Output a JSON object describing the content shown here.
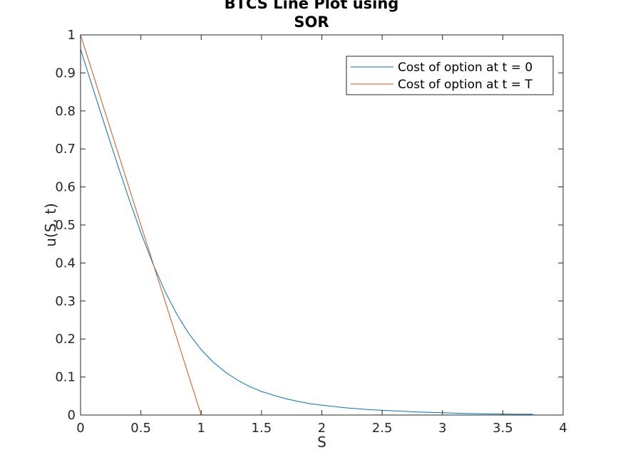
{
  "chart_data": {
    "type": "line",
    "title_lines": [
      "BTCS Line Plot using",
      "SOR"
    ],
    "xlabel": "S",
    "ylabel": "u(S, t)",
    "xlim": [
      0,
      4
    ],
    "ylim": [
      0,
      1
    ],
    "xticks": [
      0,
      0.5,
      1,
      1.5,
      2,
      2.5,
      3,
      3.5,
      4
    ],
    "yticks": [
      0,
      0.1,
      0.2,
      0.3,
      0.4,
      0.5,
      0.6,
      0.7,
      0.8,
      0.9,
      1
    ],
    "xtick_labels": [
      "0",
      "0.5",
      "1",
      "1.5",
      "2",
      "2.5",
      "3",
      "3.5",
      "4"
    ],
    "ytick_labels": [
      "0",
      "0.1",
      "0.2",
      "0.3",
      "0.4",
      "0.5",
      "0.6",
      "0.7",
      "0.8",
      "0.9",
      "1"
    ],
    "grid": false,
    "legend_position": "top-right",
    "series": [
      {
        "name": "Cost of option at t = 0",
        "color": "#0072BD",
        "x": [
          0,
          0.1,
          0.2,
          0.3,
          0.4,
          0.5,
          0.6,
          0.7,
          0.8,
          0.9,
          1.0,
          1.1,
          1.2,
          1.3,
          1.4,
          1.5,
          1.6,
          1.7,
          1.8,
          1.9,
          2.0,
          2.2,
          2.4,
          2.6,
          2.8,
          3.0,
          3.2,
          3.4,
          3.6,
          3.75
        ],
        "y": [
          0.962,
          0.862,
          0.763,
          0.665,
          0.57,
          0.48,
          0.398,
          0.325,
          0.264,
          0.213,
          0.172,
          0.139,
          0.113,
          0.092,
          0.075,
          0.062,
          0.052,
          0.043,
          0.036,
          0.03,
          0.026,
          0.019,
          0.014,
          0.011,
          0.008,
          0.006,
          0.004,
          0.003,
          0.002,
          0.002
        ]
      },
      {
        "name": "Cost of option at t = T",
        "color": "#D95319",
        "x": [
          0,
          1,
          3.75
        ],
        "y": [
          1,
          0,
          0
        ]
      }
    ]
  }
}
